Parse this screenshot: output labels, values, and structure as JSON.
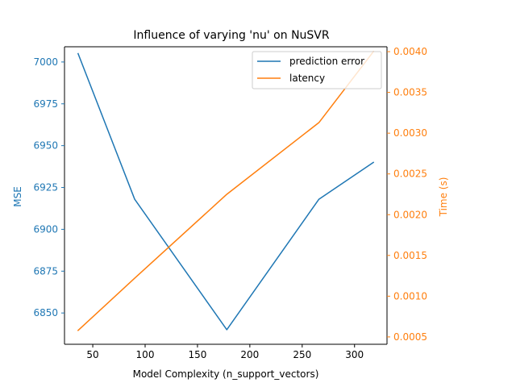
{
  "chart_data": {
    "type": "line",
    "title": "Influence of varying 'nu' on NuSVR",
    "xlabel": "Model Complexity (n_support_vectors)",
    "xlim": [
      23,
      331
    ],
    "xticks": [
      50,
      100,
      150,
      200,
      250,
      300
    ],
    "y_left": {
      "label": "MSE",
      "color": "#1f77b4",
      "lim": [
        6831.3,
        7009.1
      ],
      "ticks": [
        6850,
        6875,
        6900,
        6925,
        6950,
        6975,
        7000
      ]
    },
    "y_right": {
      "label": "Time (s)",
      "color": "#ff7f0e",
      "lim": [
        0.00041,
        0.00406
      ],
      "ticks": [
        "0.0005",
        "0.0010",
        "0.0015",
        "0.0020",
        "0.0025",
        "0.0030",
        "0.0035",
        "0.0040"
      ]
    },
    "series": [
      {
        "name": "prediction error",
        "axis": "left",
        "color": "#1f77b4",
        "x": [
          36,
          90,
          178,
          266,
          318
        ],
        "y": [
          7005,
          6918,
          6840,
          6918,
          6940
        ]
      },
      {
        "name": "latency",
        "axis": "right",
        "color": "#ff7f0e",
        "x": [
          36,
          90,
          178,
          266,
          318
        ],
        "y": [
          0.00058,
          0.00122,
          0.00225,
          0.00313,
          0.004
        ]
      }
    ],
    "legend": {
      "placement": "top-right"
    },
    "grid": false
  }
}
